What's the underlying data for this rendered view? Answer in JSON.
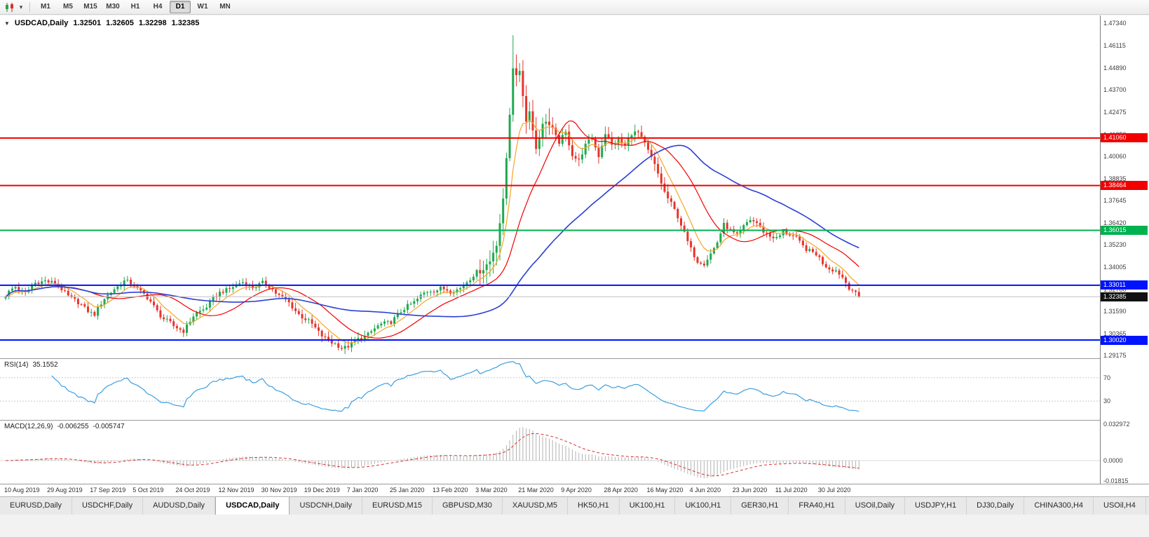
{
  "toolbar": {
    "chart_icon": "candlestick-chart-icon",
    "dropdown_icon": "caret-down-icon",
    "timeframes": [
      {
        "label": "M1",
        "active": false
      },
      {
        "label": "M5",
        "active": false
      },
      {
        "label": "M15",
        "active": false
      },
      {
        "label": "M30",
        "active": false
      },
      {
        "label": "H1",
        "active": false
      },
      {
        "label": "H4",
        "active": false
      },
      {
        "label": "D1",
        "active": true
      },
      {
        "label": "W1",
        "active": false
      },
      {
        "label": "MN",
        "active": false
      }
    ]
  },
  "chart": {
    "title": "USDCAD,Daily",
    "ohlc": {
      "open": "1.32501",
      "high": "1.32605",
      "low": "1.32298",
      "close": "1.32385"
    }
  },
  "axes": {
    "price_labels": [
      "1.47340",
      "1.46115",
      "1.44890",
      "1.43700",
      "1.42475",
      "1.41250",
      "1.40060",
      "1.38835",
      "1.37645",
      "1.36420",
      "1.35230",
      "1.34005",
      "1.32780",
      "1.31590",
      "1.30365",
      "1.29175"
    ],
    "date_labels": [
      "10 Aug 2019",
      "29 Aug 2019",
      "17 Sep 2019",
      "5 Oct 2019",
      "24 Oct 2019",
      "12 Nov 2019",
      "30 Nov 2019",
      "19 Dec 2019",
      "7 Jan 2020",
      "25 Jan 2020",
      "13 Feb 2020",
      "3 Mar 2020",
      "21 Mar 2020",
      "9 Apr 2020",
      "28 Apr 2020",
      "16 May 2020",
      "4 Jun 2020",
      "23 Jun 2020",
      "11 Jul 2020",
      "30 Jul 2020"
    ]
  },
  "levels": [
    {
      "price": 1.4106,
      "label": "1.41060",
      "color_key": "level_red"
    },
    {
      "price": 1.38464,
      "label": "1.38464",
      "color_key": "level_red"
    },
    {
      "price": 1.36015,
      "label": "1.36015",
      "color_key": "level_green"
    },
    {
      "price": 1.33011,
      "label": "1.33011",
      "color_key": "level_blue"
    },
    {
      "price": 1.3002,
      "label": "1.30020",
      "color_key": "level_blue"
    }
  ],
  "current_price": {
    "price": 1.32385,
    "label": "1.32385"
  },
  "indicators": {
    "rsi": {
      "name": "RSI(14)",
      "value": "35.1552",
      "levels": [
        {
          "value": 70,
          "label": "70"
        },
        {
          "value": 30,
          "label": "30"
        }
      ]
    },
    "macd": {
      "name": "MACD(12,26,9)",
      "value": "-0.006255",
      "signal": "-0.005747",
      "scale": [
        {
          "value": 0.032972,
          "label": "0.032972"
        },
        {
          "value": 0,
          "label": "0.0000"
        },
        {
          "value": -0.01815,
          "label": "-0.01815"
        }
      ]
    }
  },
  "colors": {
    "up": "#1fa94f",
    "down": "#e5352c",
    "ma_fast": "#f5a623",
    "ma_mid": "#f40000",
    "ma_slow": "#2b3fd6",
    "rsi_line": "#3c9fe0",
    "macd_hist": "#b2b2b2",
    "macd_signal": "#e03030",
    "level_red": "#f20000",
    "level_green": "#00b14f",
    "level_blue": "#0013ff",
    "tag_black": "#111111"
  },
  "chart_data": {
    "type": "candlestick",
    "symbol": "USDCAD",
    "period": "Daily",
    "y_range": [
      1.29175,
      1.4734
    ],
    "candle_count": 260,
    "last_close": 1.32385,
    "spike": {
      "index": 154,
      "high": 1.4668
    },
    "close_path": [
      [
        0,
        1.3245
      ],
      [
        3,
        1.329
      ],
      [
        6,
        1.3262
      ],
      [
        9,
        1.3308
      ],
      [
        12,
        1.3332
      ],
      [
        15,
        1.3308
      ],
      [
        18,
        1.3262
      ],
      [
        21,
        1.3218
      ],
      [
        24,
        1.3172
      ],
      [
        27,
        1.3148
      ],
      [
        30,
        1.3222
      ],
      [
        33,
        1.3288
      ],
      [
        36,
        1.3318
      ],
      [
        39,
        1.3305
      ],
      [
        42,
        1.3252
      ],
      [
        45,
        1.3182
      ],
      [
        48,
        1.3122
      ],
      [
        51,
        1.3072
      ],
      [
        54,
        1.3058
      ],
      [
        57,
        1.3128
      ],
      [
        60,
        1.3172
      ],
      [
        63,
        1.3228
      ],
      [
        66,
        1.3268
      ],
      [
        69,
        1.3298
      ],
      [
        72,
        1.3312
      ],
      [
        75,
        1.3296
      ],
      [
        78,
        1.3308
      ],
      [
        81,
        1.3282
      ],
      [
        84,
        1.3232
      ],
      [
        87,
        1.3182
      ],
      [
        90,
        1.3132
      ],
      [
        93,
        1.3082
      ],
      [
        96,
        1.3032
      ],
      [
        99,
        1.2982
      ],
      [
        102,
        1.2962
      ],
      [
        105,
        1.2978
      ],
      [
        108,
        1.3012
      ],
      [
        111,
        1.3052
      ],
      [
        114,
        1.3082
      ],
      [
        117,
        1.3108
      ],
      [
        120,
        1.3152
      ],
      [
        123,
        1.3202
      ],
      [
        126,
        1.3242
      ],
      [
        129,
        1.3272
      ],
      [
        132,
        1.3288
      ],
      [
        135,
        1.3262
      ],
      [
        138,
        1.3292
      ],
      [
        141,
        1.3332
      ],
      [
        144,
        1.3392
      ],
      [
        147,
        1.343
      ],
      [
        149,
        1.353
      ],
      [
        151,
        1.376
      ],
      [
        153,
        1.425
      ],
      [
        154,
        1.45
      ],
      [
        155,
        1.442
      ],
      [
        156,
        1.4475
      ],
      [
        157,
        1.435
      ],
      [
        158,
        1.42
      ],
      [
        159,
        1.428
      ],
      [
        160,
        1.415
      ],
      [
        161,
        1.405
      ],
      [
        162,
        1.412
      ],
      [
        164,
        1.421
      ],
      [
        166,
        1.415
      ],
      [
        168,
        1.408
      ],
      [
        170,
        1.413
      ],
      [
        172,
        1.402
      ],
      [
        174,
        1.3985
      ],
      [
        176,
        1.406
      ],
      [
        178,
        1.4105
      ],
      [
        180,
        1.4015
      ],
      [
        182,
        1.413
      ],
      [
        184,
        1.406
      ],
      [
        186,
        1.41
      ],
      [
        188,
        1.4065
      ],
      [
        190,
        1.4125
      ],
      [
        192,
        1.4135
      ],
      [
        194,
        1.408
      ],
      [
        196,
        1.3995
      ],
      [
        198,
        1.3905
      ],
      [
        200,
        1.3815
      ],
      [
        202,
        1.375
      ],
      [
        204,
        1.367
      ],
      [
        206,
        1.3585
      ],
      [
        208,
        1.3505
      ],
      [
        210,
        1.343
      ],
      [
        212,
        1.3415
      ],
      [
        214,
        1.348
      ],
      [
        216,
        1.354
      ],
      [
        218,
        1.3625
      ],
      [
        220,
        1.36
      ],
      [
        222,
        1.358
      ],
      [
        224,
        1.3618
      ],
      [
        226,
        1.3655
      ],
      [
        228,
        1.3648
      ],
      [
        230,
        1.3598
      ],
      [
        232,
        1.3562
      ],
      [
        234,
        1.3558
      ],
      [
        236,
        1.36
      ],
      [
        238,
        1.3575
      ],
      [
        240,
        1.3552
      ],
      [
        242,
        1.352
      ],
      [
        244,
        1.349
      ],
      [
        246,
        1.3465
      ],
      [
        248,
        1.3425
      ],
      [
        250,
        1.34
      ],
      [
        252,
        1.3378
      ],
      [
        254,
        1.334
      ],
      [
        256,
        1.3295
      ],
      [
        257,
        1.3282
      ],
      [
        258,
        1.3255
      ],
      [
        259,
        1.32385
      ]
    ],
    "moving_averages": [
      {
        "type": "ema",
        "period": 8,
        "color_key": "ma_fast"
      },
      {
        "type": "sma",
        "period": 20,
        "color_key": "ma_mid"
      },
      {
        "type": "sma",
        "period": 55,
        "color_key": "ma_slow"
      }
    ]
  },
  "tabs": [
    {
      "label": "EURUSD,Daily",
      "active": false
    },
    {
      "label": "USDCHF,Daily",
      "active": false
    },
    {
      "label": "AUDUSD,Daily",
      "active": false
    },
    {
      "label": "USDCAD,Daily",
      "active": true
    },
    {
      "label": "USDCNH,Daily",
      "active": false
    },
    {
      "label": "EURUSD,M15",
      "active": false
    },
    {
      "label": "GBPUSD,M30",
      "active": false
    },
    {
      "label": "XAUUSD,M5",
      "active": false
    },
    {
      "label": "HK50,H1",
      "active": false
    },
    {
      "label": "UK100,H1",
      "active": false
    },
    {
      "label": "UK100,H1",
      "active": false
    },
    {
      "label": "GER30,H1",
      "active": false
    },
    {
      "label": "FRA40,H1",
      "active": false
    },
    {
      "label": "USOil,Daily",
      "active": false
    },
    {
      "label": "USDJPY,H1",
      "active": false
    },
    {
      "label": "DJ30,Daily",
      "active": false
    },
    {
      "label": "CHINA300,H4",
      "active": false
    },
    {
      "label": "USOil,H4",
      "active": false
    }
  ]
}
